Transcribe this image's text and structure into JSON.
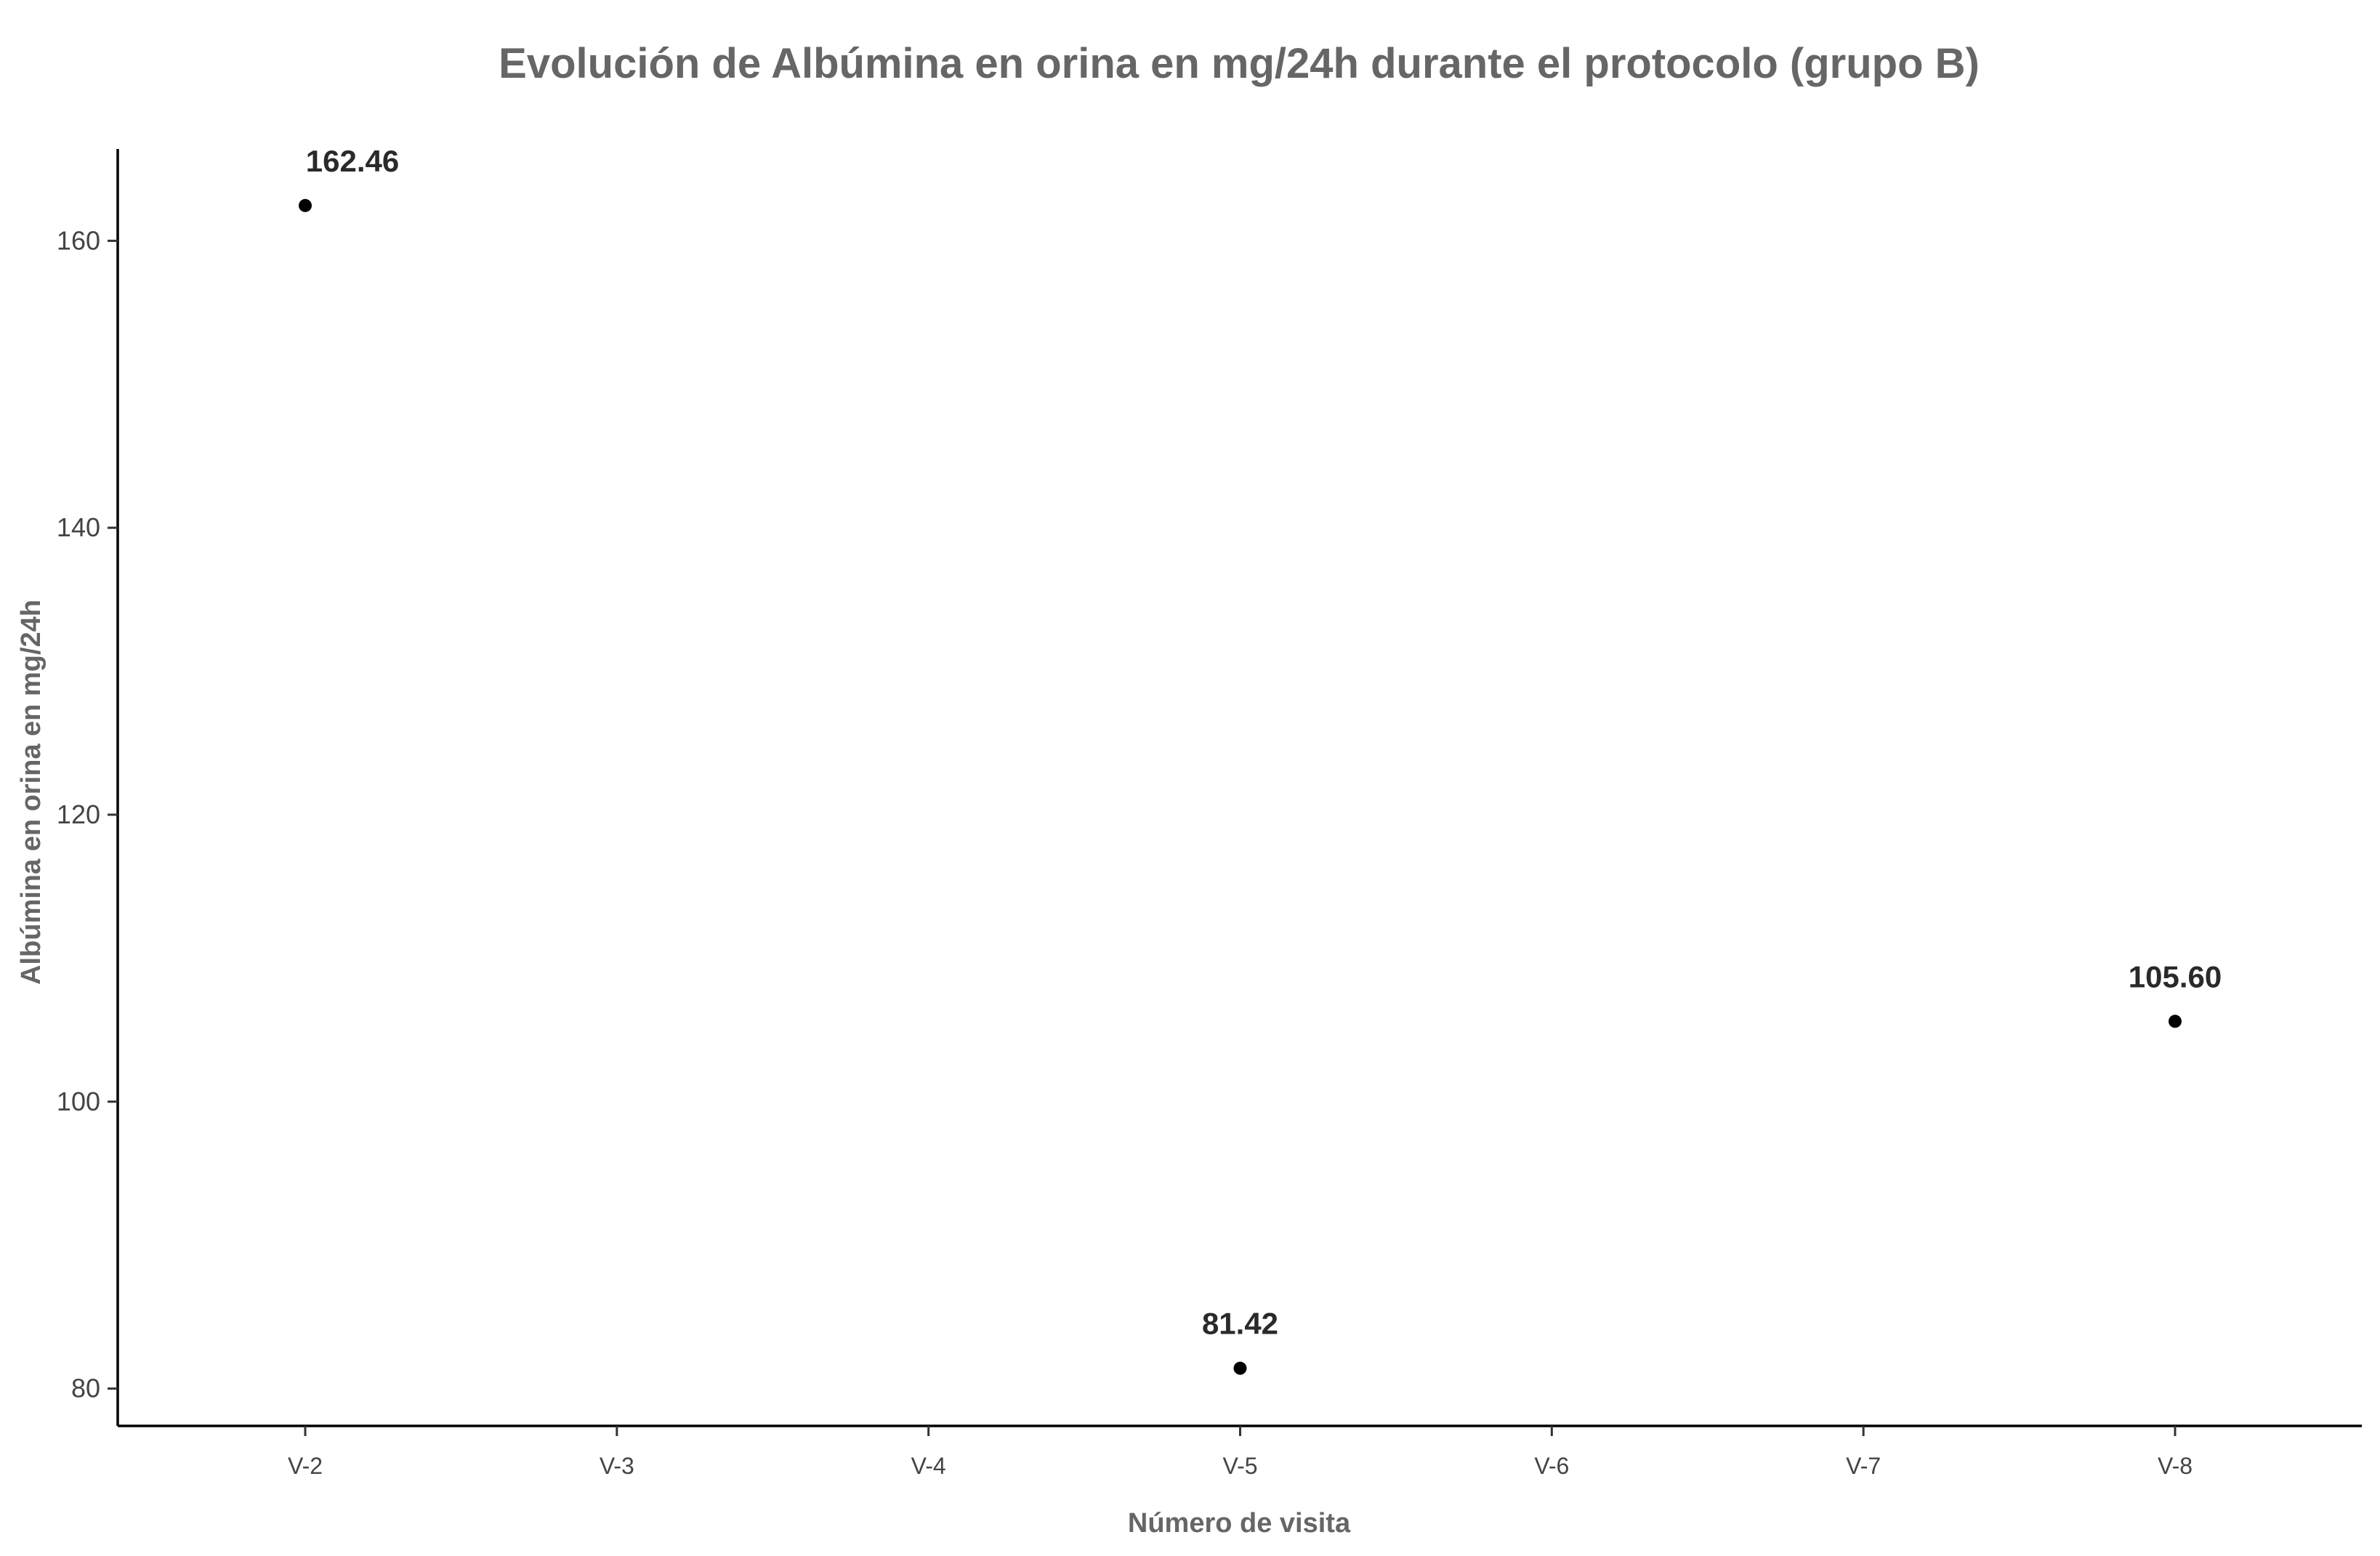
{
  "chart_data": {
    "type": "scatter",
    "title": "Evolución de Albúmina en orina en mg/24h  durante el protocolo (grupo B)",
    "xlabel": "Número de visita",
    "ylabel": "Albúmina en orina en mg/24h",
    "categories": [
      "V-2",
      "V-3",
      "V-4",
      "V-5",
      "V-6",
      "V-7",
      "V-8"
    ],
    "points": [
      {
        "x": "V-2",
        "y": 162.46,
        "label": "162.46"
      },
      {
        "x": "V-5",
        "y": 81.42,
        "label": "81.42"
      },
      {
        "x": "V-8",
        "y": 105.6,
        "label": "105.60"
      }
    ],
    "yticks": [
      80,
      100,
      120,
      140,
      160
    ],
    "ylim": [
      77.4,
      166.4
    ],
    "grid": false,
    "legend": "none",
    "colors": {
      "point": "#000000",
      "title": "#666666",
      "axis_label": "#666666",
      "tick_label": "#444444",
      "data_label": "#2a2a2a"
    }
  }
}
